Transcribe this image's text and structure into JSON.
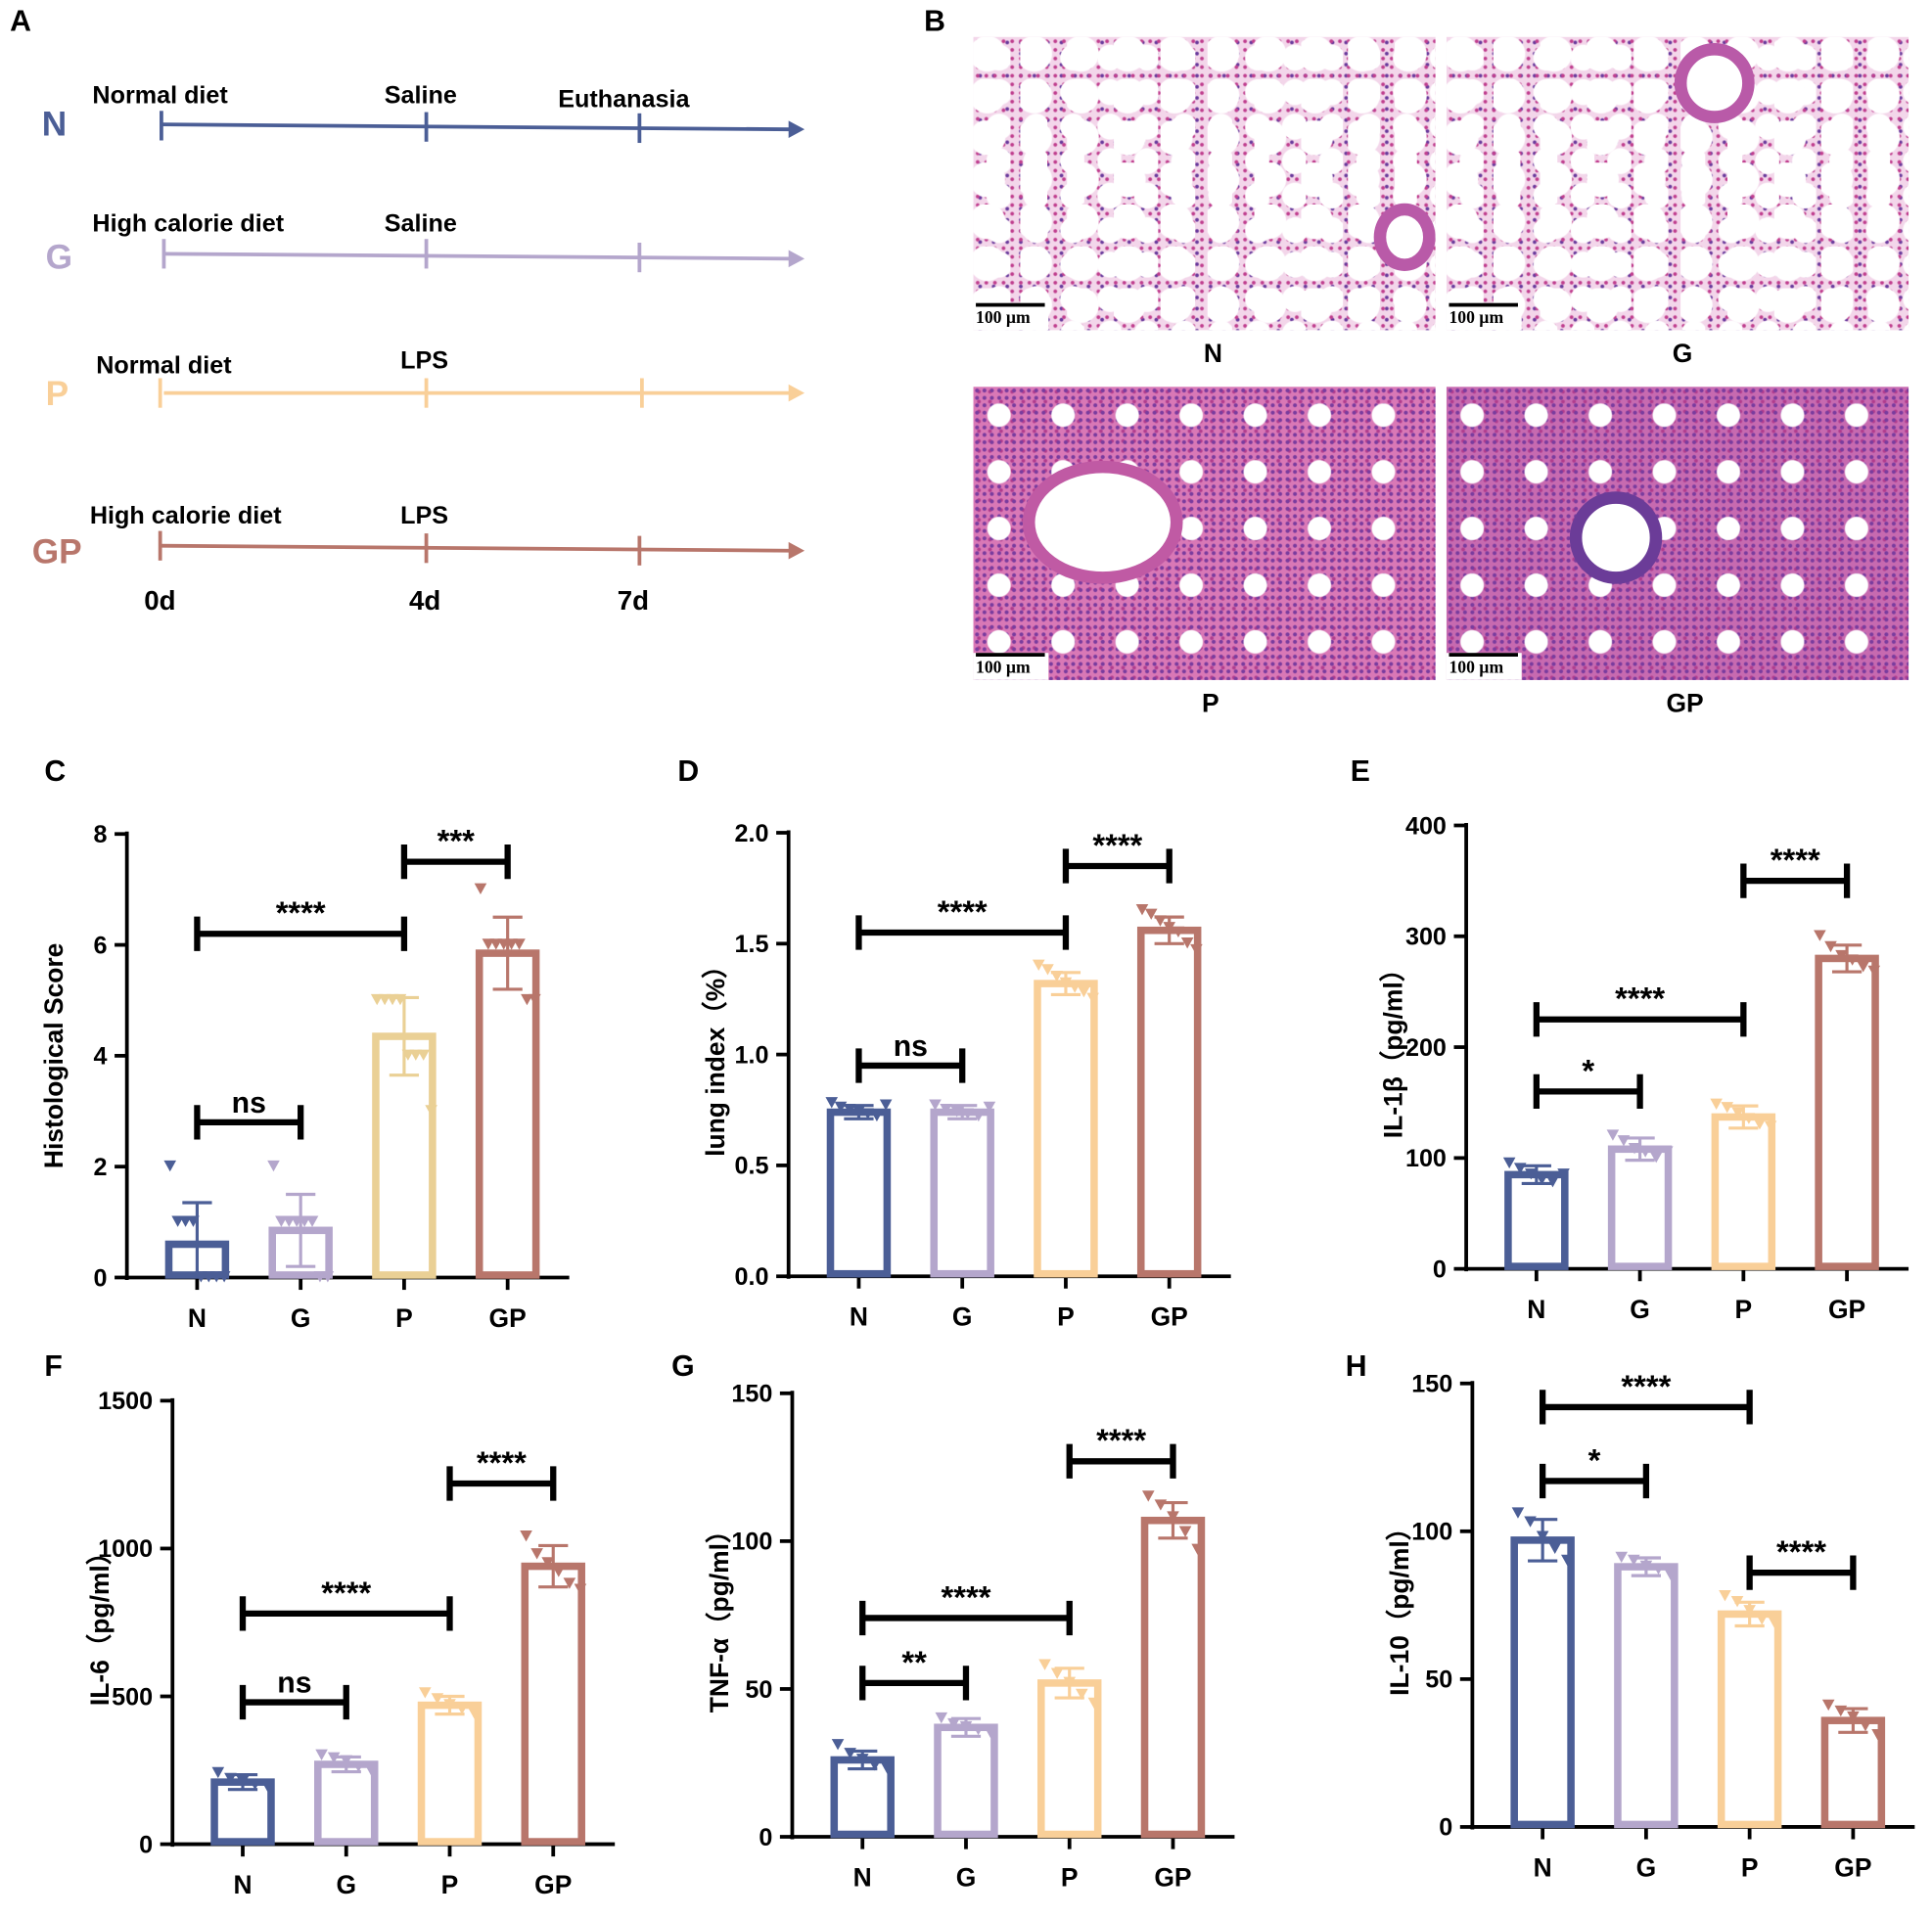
{
  "panel_letters": {
    "a": "A",
    "b": "B",
    "c": "C",
    "d": "D",
    "e": "E",
    "f": "F",
    "g": "G",
    "h": "H"
  },
  "colors": {
    "N": "#4b5e96",
    "G": "#b4a6cc",
    "P": "#f9cf98",
    "P_hist": "#ead095",
    "GP": "#b8766b"
  },
  "timeline": {
    "groups": [
      {
        "name": "N",
        "diet": "Normal diet",
        "treatment": "Saline",
        "end": "Euthanasia"
      },
      {
        "name": "G",
        "diet": "High calorie diet",
        "treatment": "Saline"
      },
      {
        "name": "P",
        "diet": "Normal diet",
        "treatment": "LPS"
      },
      {
        "name": "GP",
        "diet": "High calorie diet",
        "treatment": "LPS"
      }
    ],
    "days": [
      "0d",
      "4d",
      "7d"
    ]
  },
  "histology": {
    "scale_bar": "100 µm",
    "images": [
      {
        "label": "N"
      },
      {
        "label": "G"
      },
      {
        "label": "P"
      },
      {
        "label": "GP"
      }
    ]
  },
  "chart_data": [
    {
      "type": "bar",
      "panel": "C",
      "ylabel": "Histological Score",
      "ylim": [
        0,
        8
      ],
      "yticks": [
        0,
        2,
        4,
        6,
        8
      ],
      "tick_labels": [
        "0",
        "2",
        "4",
        "6",
        "8"
      ],
      "categories": [
        "N",
        "G",
        "P",
        "GP"
      ],
      "values": [
        0.6,
        0.85,
        4.35,
        5.85
      ],
      "sd": [
        0.75,
        0.65,
        0.7,
        0.65
      ],
      "points": [
        [
          2,
          1,
          1,
          1,
          0,
          0,
          0,
          0
        ],
        [
          2,
          1,
          1,
          1,
          1,
          1,
          0,
          0
        ],
        [
          5,
          5,
          5,
          5,
          4,
          4,
          4,
          3
        ],
        [
          7,
          6,
          6,
          6,
          6,
          6,
          5,
          5
        ]
      ],
      "significance": [
        {
          "from": 0,
          "to": 1,
          "label": "ns",
          "y": 2.8
        },
        {
          "from": 0,
          "to": 2,
          "label": "****",
          "y": 6.2
        },
        {
          "from": 2,
          "to": 3,
          "label": "***",
          "y": 7.5
        }
      ]
    },
    {
      "type": "bar",
      "panel": "D",
      "ylabel": "lung index（%）",
      "ylim": [
        0,
        2.0
      ],
      "yticks": [
        0,
        0.5,
        1,
        1.5,
        2
      ],
      "tick_labels": [
        "0.0",
        "0.5",
        "1.0",
        "1.5",
        "2.0"
      ],
      "categories": [
        "N",
        "G",
        "P",
        "GP"
      ],
      "values": [
        0.74,
        0.74,
        1.32,
        1.56
      ],
      "sd": [
        0.03,
        0.03,
        0.05,
        0.06
      ],
      "points": [
        [
          0.78,
          0.76,
          0.75,
          0.74,
          0.73,
          0.72,
          0.77
        ],
        [
          0.77,
          0.75,
          0.74,
          0.73,
          0.72,
          0.76
        ],
        [
          1.4,
          1.38,
          1.35,
          1.32,
          1.3,
          1.28,
          1.25
        ],
        [
          1.65,
          1.63,
          1.6,
          1.57,
          1.55,
          1.5,
          1.47
        ]
      ],
      "significance": [
        {
          "from": 0,
          "to": 1,
          "label": "ns",
          "y": 0.95
        },
        {
          "from": 0,
          "to": 2,
          "label": "****",
          "y": 1.55
        },
        {
          "from": 2,
          "to": 3,
          "label": "****",
          "y": 1.85
        }
      ]
    },
    {
      "type": "bar",
      "panel": "E",
      "ylabel": "IL-1β（pg/ml）",
      "ylim": [
        0,
        400
      ],
      "yticks": [
        0,
        100,
        200,
        300,
        400
      ],
      "tick_labels": [
        "0",
        "100",
        "200",
        "300",
        "400"
      ],
      "categories": [
        "N",
        "G",
        "P",
        "GP"
      ],
      "values": [
        85,
        108,
        137,
        280
      ],
      "sd": [
        8,
        10,
        10,
        12
      ],
      "points": [
        [
          95,
          90,
          85,
          80,
          78,
          85
        ],
        [
          120,
          115,
          108,
          105,
          100,
          105
        ],
        [
          148,
          145,
          140,
          135,
          130,
          128
        ],
        [
          300,
          290,
          282,
          278,
          272,
          268
        ]
      ],
      "significance": [
        {
          "from": 0,
          "to": 1,
          "label": "*",
          "y": 160
        },
        {
          "from": 0,
          "to": 2,
          "label": "****",
          "y": 225
        },
        {
          "from": 2,
          "to": 3,
          "label": "****",
          "y": 350
        }
      ]
    },
    {
      "type": "bar",
      "panel": "F",
      "ylabel": "IL-6（pg/ml）",
      "ylim": [
        0,
        1500
      ],
      "yticks": [
        0,
        500,
        1000,
        1500
      ],
      "tick_labels": [
        "0",
        "500",
        "1000",
        "1500"
      ],
      "categories": [
        "N",
        "G",
        "P",
        "GP"
      ],
      "values": [
        210,
        270,
        470,
        940
      ],
      "sd": [
        25,
        25,
        30,
        70
      ],
      "points": [
        [
          240,
          220,
          210,
          200,
          195
        ],
        [
          300,
          290,
          280,
          260,
          250
        ],
        [
          510,
          490,
          470,
          455,
          440
        ],
        [
          1040,
          980,
          950,
          920,
          880,
          860
        ]
      ],
      "significance": [
        {
          "from": 0,
          "to": 1,
          "label": "ns",
          "y": 480
        },
        {
          "from": 0,
          "to": 2,
          "label": "****",
          "y": 780
        },
        {
          "from": 2,
          "to": 3,
          "label": "****",
          "y": 1220
        }
      ]
    },
    {
      "type": "bar",
      "panel": "G",
      "ylabel": "TNF-α（pg/ml）",
      "ylim": [
        0,
        150
      ],
      "yticks": [
        0,
        50,
        100,
        150
      ],
      "tick_labels": [
        "0",
        "50",
        "100",
        "150"
      ],
      "categories": [
        "N",
        "G",
        "P",
        "GP"
      ],
      "values": [
        26,
        37,
        52,
        107
      ],
      "sd": [
        3,
        3,
        5,
        6
      ],
      "points": [
        [
          31,
          28,
          26,
          24,
          23
        ],
        [
          40,
          38,
          37,
          36,
          35
        ],
        [
          58,
          55,
          52,
          48,
          45
        ],
        [
          115,
          112,
          108,
          103,
          97
        ]
      ],
      "significance": [
        {
          "from": 0,
          "to": 1,
          "label": "**",
          "y": 52
        },
        {
          "from": 0,
          "to": 2,
          "label": "****",
          "y": 74
        },
        {
          "from": 2,
          "to": 3,
          "label": "****",
          "y": 127
        }
      ]
    },
    {
      "type": "bar",
      "panel": "H",
      "ylabel": "IL-10（pg/ml）",
      "ylim": [
        0,
        150
      ],
      "yticks": [
        0,
        50,
        100,
        150
      ],
      "tick_labels": [
        "0",
        "50",
        "100",
        "150"
      ],
      "categories": [
        "N",
        "G",
        "P",
        "GP"
      ],
      "values": [
        97,
        88,
        72,
        36
      ],
      "sd": [
        7,
        3,
        4,
        4
      ],
      "points": [
        [
          106,
          103,
          98,
          94,
          90
        ],
        [
          91,
          90,
          88,
          87,
          85
        ],
        [
          78,
          76,
          73,
          70,
          69
        ],
        [
          41,
          39,
          37,
          34,
          31
        ]
      ],
      "significance": [
        {
          "from": 0,
          "to": 1,
          "label": "*",
          "y": 117
        },
        {
          "from": 0,
          "to": 2,
          "label": "****",
          "y": 142
        },
        {
          "from": 2,
          "to": 3,
          "label": "****",
          "y": 86
        }
      ]
    }
  ]
}
